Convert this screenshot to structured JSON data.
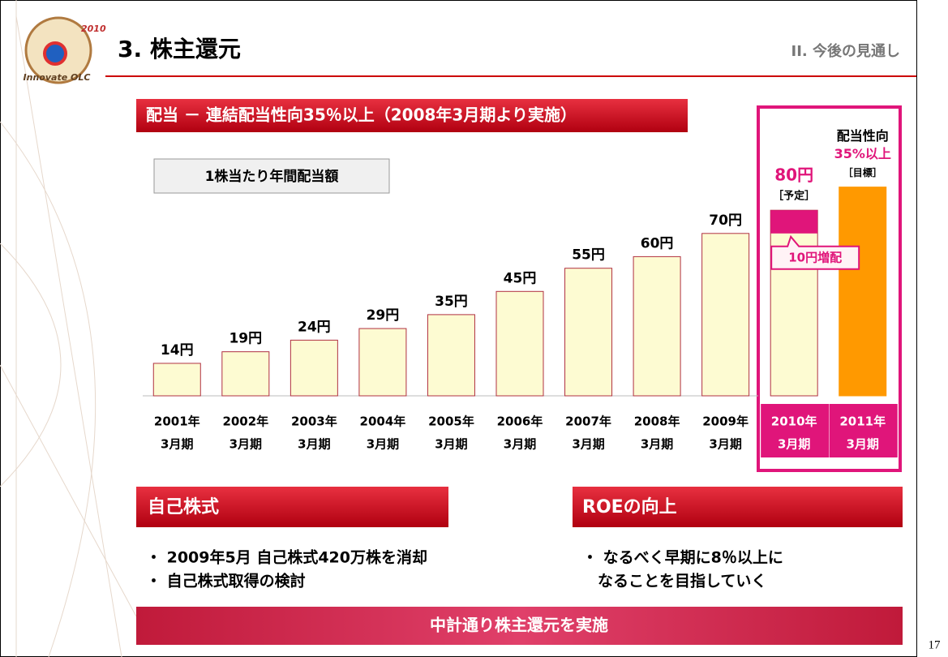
{
  "header": {
    "title": "3. 株主還元",
    "section": "II. 今後の見通し",
    "logo": [
      "2010",
      "Innovate OLC"
    ]
  },
  "banner": "配当 － 連結配当性向35％以上（2008年3月期より実施）",
  "chart_data": {
    "type": "bar",
    "title": "1株当たり年間配当額",
    "categories": [
      [
        "2001年",
        "3月期"
      ],
      [
        "2002年",
        "3月期"
      ],
      [
        "2003年",
        "3月期"
      ],
      [
        "2004年",
        "3月期"
      ],
      [
        "2005年",
        "3月期"
      ],
      [
        "2006年",
        "3月期"
      ],
      [
        "2007年",
        "3月期"
      ],
      [
        "2008年",
        "3月期"
      ],
      [
        "2009年",
        "3月期"
      ],
      [
        "2010年",
        "3月期"
      ],
      [
        "2011年",
        "3月期"
      ]
    ],
    "values": [
      14,
      19,
      24,
      29,
      35,
      45,
      55,
      60,
      70,
      80,
      90
    ],
    "value_labels": [
      "14円",
      "19円",
      "24円",
      "29円",
      "35円",
      "45円",
      "55円",
      "60円",
      "70円",
      "80円",
      null
    ],
    "colors": [
      "#fdfbd2",
      "#fdfbd2",
      "#fdfbd2",
      "#fdfbd2",
      "#fdfbd2",
      "#fdfbd2",
      "#fdfbd2",
      "#fdfbd2",
      "#fdfbd2",
      "#fdfbd2",
      "#ff9900"
    ],
    "ylim": [
      0,
      100
    ],
    "increase": {
      "value": 10,
      "label": "10円増配",
      "color": "#e0157a"
    },
    "forecast_note": "［予定］",
    "target_notes": [
      "配当性向",
      "35%以上",
      "［目標］"
    ]
  },
  "sections": [
    {
      "title": "自己株式",
      "bullets": [
        "・ 2009年5月 自己株式420万株を消却",
        "・ 自己株式取得の検討"
      ]
    },
    {
      "title": "ROEの向上",
      "bullets": [
        "・ なるべく早期に8％以上に",
        "　なることを目指していく"
      ]
    }
  ],
  "footer": "中計通り株主還元を実施",
  "page": "17"
}
